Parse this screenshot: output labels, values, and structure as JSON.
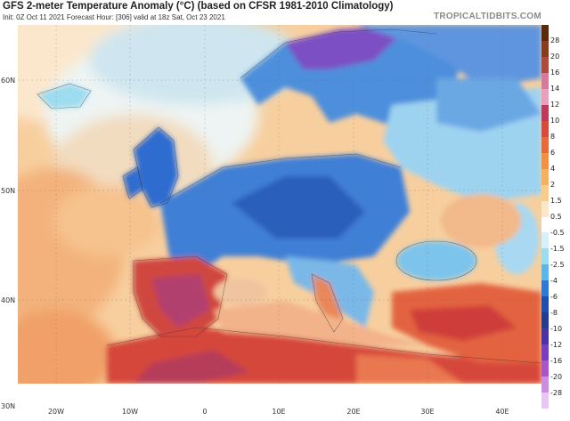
{
  "header": {
    "title": "GFS 2-meter Temperature Anomaly (°C) (based on CFSR 1981-2010 Climatology)",
    "subtitle": "Init: 0Z Oct 11 2021   Forecast Hour: [306]   valid at 18z Sat, Oct 23 2021",
    "brand": "TROPICALTIDBITS.COM"
  },
  "axes": {
    "lat_labels": [
      "60N",
      "50N",
      "40N",
      "30N"
    ],
    "lon_labels": [
      "20W",
      "10W",
      "0",
      "10E",
      "20E",
      "30E",
      "40E"
    ]
  },
  "colorbar": {
    "labels": [
      "28",
      "20",
      "16",
      "14",
      "12",
      "10",
      "8",
      "6",
      "4",
      "2",
      "1.5",
      "0.5",
      "-0.5",
      "-1.5",
      "-2.5",
      "-4",
      "-6",
      "-8",
      "-10",
      "-12",
      "-16",
      "-20",
      "-28"
    ],
    "colors": [
      "#5a2a0a",
      "#8b3a1a",
      "#b04a3a",
      "#d77a9a",
      "#eaa0bc",
      "#c0385a",
      "#d84a3a",
      "#e86a3a",
      "#f09040",
      "#f6b060",
      "#f8cd88",
      "#fbe8c8",
      "#ffffff",
      "#d6f0fa",
      "#9adcf2",
      "#5ab7ea",
      "#2f79d6",
      "#1e4fae",
      "#223c8e",
      "#4a33a4",
      "#7a3fbe",
      "#a855c8",
      "#c98ee0",
      "#e8c6f2"
    ]
  },
  "map_colors": {
    "ocean_warm": "#f6c896",
    "ocean_neutral": "#fbe7cc",
    "cold": "#4e8fdc",
    "very_cold": "#2a5fbc",
    "coldest": "#7b4fc4",
    "warm": "#eb7f56",
    "hot": "#d2432f",
    "hottest": "#b23f6e"
  }
}
